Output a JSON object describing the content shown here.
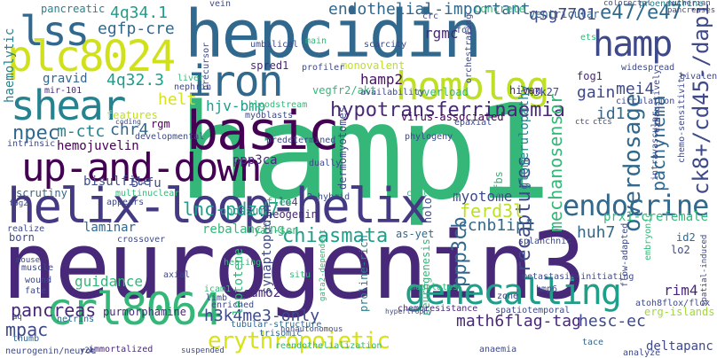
{
  "words": [
    {
      "text": "neurogenin3",
      "color": "#482878"
    },
    {
      "text": "hamp1",
      "color": "#35b779"
    },
    {
      "text": "hepcidin",
      "color": "#31688e"
    },
    {
      "text": "helix-loop-helix",
      "color": "#443983"
    },
    {
      "text": "basic",
      "color": "#440154"
    },
    {
      "text": "up-and-down",
      "color": "#440154"
    },
    {
      "text": "crl8064",
      "color": "#35b779"
    },
    {
      "text": "plc8024",
      "color": "#d0e11c"
    },
    {
      "text": "lss",
      "color": "#31688e"
    },
    {
      "text": "iron",
      "color": "#31688e"
    },
    {
      "text": "shear",
      "color": "#26828e"
    },
    {
      "text": "homolog",
      "color": "#bddf26"
    },
    {
      "text": "hamp",
      "color": "#3e4989"
    },
    {
      "text": "genecalling",
      "color": "#1f9e89"
    },
    {
      "text": "endocrine",
      "color": "#31688e"
    },
    {
      "text": "erythropoietic",
      "color": "#d8e219"
    },
    {
      "text": "hypotransferrinaemia",
      "color": "#482878"
    },
    {
      "text": "e47/e47",
      "color": "#31688e"
    },
    {
      "text": "ck8+/cd45-/dapi",
      "color": "#3e4989"
    },
    {
      "text": "overdosage",
      "color": "#31688e"
    },
    {
      "text": "mechanosensor",
      "color": "#35b779"
    },
    {
      "text": "pachynema",
      "color": "#31688e"
    },
    {
      "text": "hamp2",
      "color": "#471365"
    },
    {
      "text": "lnc-pdzd7",
      "color": "#1f9e89"
    },
    {
      "text": "chiasmata",
      "color": "#1f9e89"
    },
    {
      "text": "ppp3cb",
      "color": "#31688e"
    },
    {
      "text": "recaptures",
      "color": "#3e4989"
    },
    {
      "text": "pancreas",
      "color": "#482878"
    },
    {
      "text": "qsg7701",
      "color": "#3e4989"
    },
    {
      "text": "mpac",
      "color": "#3e4989"
    },
    {
      "text": "4q34.1",
      "color": "#1f9e89"
    },
    {
      "text": "4q32.3",
      "color": "#1f9e89"
    },
    {
      "text": "egfp-cre",
      "color": "#31688e"
    },
    {
      "text": "endothelial-important",
      "color": "#31688e"
    },
    {
      "text": "rgmc",
      "color": "#482878"
    },
    {
      "text": "npec",
      "color": "#31688e"
    },
    {
      "text": "m-ctc",
      "color": "#26828e"
    },
    {
      "text": "chr4",
      "color": "#31688e"
    },
    {
      "text": "hemojuvelin",
      "color": "#440154"
    },
    {
      "text": "hjv-bmp",
      "color": "#1f9e89"
    },
    {
      "text": "helt",
      "color": "#d8e219"
    },
    {
      "text": "mei4",
      "color": "#3e4989"
    },
    {
      "text": "gain",
      "color": "#3e4989"
    },
    {
      "text": "id1",
      "color": "#31688e"
    },
    {
      "text": "ccnb1ip1",
      "color": "#31688e"
    },
    {
      "text": "ferd3l",
      "color": "#bddf26"
    },
    {
      "text": "myotome",
      "color": "#3e4989"
    },
    {
      "text": "huh7",
      "color": "#31688e"
    },
    {
      "text": "prx1-crefemale",
      "color": "#35b779"
    },
    {
      "text": "h3k4me3-only",
      "color": "#3e4989"
    },
    {
      "text": "math6flag-tag",
      "color": "#482878"
    },
    {
      "text": "hesc-ec",
      "color": "#3e4989"
    },
    {
      "text": "rim4",
      "color": "#482878"
    },
    {
      "text": "deltapanc",
      "color": "#3e4989"
    },
    {
      "text": "rebalancing",
      "color": "#35b779"
    },
    {
      "text": "laminar",
      "color": "#31688e"
    },
    {
      "text": "bisulfite",
      "color": "#3e4989"
    },
    {
      "text": "5-fu",
      "color": "#3e4989"
    },
    {
      "text": "ppp3ca",
      "color": "#482878"
    },
    {
      "text": "glomerulopathy",
      "color": "#26828e"
    },
    {
      "text": "tfbs",
      "color": "#35b779"
    },
    {
      "text": "guidance",
      "color": "#35b779"
    },
    {
      "text": "purmorphamine",
      "color": "#482878"
    },
    {
      "text": "sumo2",
      "color": "#482878"
    },
    {
      "text": "leptotene",
      "color": "#35b779"
    },
    {
      "text": "synaptopodin",
      "color": "#3e4989"
    },
    {
      "text": "proline-rich",
      "color": "#26828e"
    },
    {
      "text": "neurogenesis",
      "color": "#35b779"
    },
    {
      "text": "haemolytic",
      "color": "#26828e"
    },
    {
      "text": "gravid",
      "color": "#31688e"
    },
    {
      "text": "mir-101",
      "color": "#482878"
    },
    {
      "text": "pancreatic",
      "color": "#26828e"
    },
    {
      "text": "spred1",
      "color": "#482878"
    },
    {
      "text": "monovalent",
      "color": "#bddf26"
    },
    {
      "text": "vegfr2/akt",
      "color": "#35b779"
    },
    {
      "text": "features",
      "color": "#bddf26"
    },
    {
      "text": "rgm",
      "color": "#440154"
    },
    {
      "text": "scrutiny",
      "color": "#31688e"
    },
    {
      "text": "born",
      "color": "#3e4989"
    },
    {
      "text": "opossum",
      "color": "#1f9e89"
    },
    {
      "text": "neogenin",
      "color": "#482878"
    },
    {
      "text": "le4",
      "color": "#3e4989"
    },
    {
      "text": "fle4",
      "color": "#35b779"
    },
    {
      "text": "yat-sen",
      "color": "#35b779"
    },
    {
      "text": "as-yet",
      "color": "#31688e"
    },
    {
      "text": "holo",
      "color": "#3e4989"
    },
    {
      "text": "dermomyotomes",
      "color": "#3e4989"
    },
    {
      "text": "overload",
      "color": "#35b779"
    },
    {
      "text": "hivan",
      "color": "#482878"
    },
    {
      "text": "h3k27",
      "color": "#3e4989"
    },
    {
      "text": "fog1",
      "color": "#482878"
    },
    {
      "text": "virus-associated",
      "color": "#440154"
    },
    {
      "text": "concrete",
      "color": "#35b779"
    },
    {
      "text": "ventricular",
      "color": "#31688e"
    },
    {
      "text": "proendocrine",
      "color": "#26828e"
    },
    {
      "text": "embryonic",
      "color": "#35b779"
    },
    {
      "text": "flow-adapted",
      "color": "#3e4989"
    },
    {
      "text": "id2",
      "color": "#31688e"
    },
    {
      "text": "lo2",
      "color": "#3e4989"
    },
    {
      "text": "erg-islands",
      "color": "#a0da39"
    },
    {
      "text": "reendothelialization",
      "color": "#35b779"
    },
    {
      "text": "trisomic",
      "color": "#31688e"
    },
    {
      "text": "thumb",
      "color": "#31688e"
    },
    {
      "text": "netrins",
      "color": "#31688e"
    },
    {
      "text": "immortalized",
      "color": "#482878"
    },
    {
      "text": "tubular-structure",
      "color": "#31688e"
    },
    {
      "text": "chemoresistance",
      "color": "#482878"
    },
    {
      "text": "spatiotemporal",
      "color": "#3e4989"
    },
    {
      "text": "anaemia",
      "color": "#3e4989"
    },
    {
      "text": "tace",
      "color": "#31688e"
    },
    {
      "text": "analyze",
      "color": "#3e4989"
    },
    {
      "text": "atoh8flox/flox",
      "color": "#3e4989"
    },
    {
      "text": "zone",
      "color": "#3e4989"
    },
    {
      "text": "vein",
      "color": "#3e4989"
    },
    {
      "text": "crc",
      "color": "#3e4989"
    },
    {
      "text": "fog",
      "color": "#3e4989"
    },
    {
      "text": "ets",
      "color": "#35b779"
    },
    {
      "text": "main",
      "color": "#35b779"
    },
    {
      "text": "scarcity",
      "color": "#3e4989"
    },
    {
      "text": "umbilical",
      "color": "#3e4989"
    },
    {
      "text": "liver",
      "color": "#35b779"
    },
    {
      "text": "nephrin",
      "color": "#3e4989"
    },
    {
      "text": "precursor",
      "color": "#3e4989"
    },
    {
      "text": "profiler",
      "color": "#3e4989"
    },
    {
      "text": "orchestrating",
      "color": "#3e4989"
    },
    {
      "text": "availability",
      "color": "#3e4989"
    },
    {
      "text": "myoblasts",
      "color": "#3e4989"
    },
    {
      "text": "bloodstream",
      "color": "#35b779"
    },
    {
      "text": "epaxial",
      "color": "#3e4989"
    },
    {
      "text": "phylogeny",
      "color": "#3e4989"
    },
    {
      "text": "predetermined",
      "color": "#3e4989"
    },
    {
      "text": "dually",
      "color": "#3e4989"
    },
    {
      "text": "developmental",
      "color": "#3e4989"
    },
    {
      "text": "intrinsic",
      "color": "#3e4989"
    },
    {
      "text": "multinuclear",
      "color": "#35b779"
    },
    {
      "text": "2-hybrid",
      "color": "#3e4989"
    },
    {
      "text": "collapsing",
      "color": "#35b779"
    },
    {
      "text": "appears",
      "color": "#3e4989"
    },
    {
      "text": "crossover",
      "color": "#3e4989"
    },
    {
      "text": "realize",
      "color": "#3e4989"
    },
    {
      "text": "muscle",
      "color": "#3e4989"
    },
    {
      "text": "wound",
      "color": "#3e4989"
    },
    {
      "text": "fate",
      "color": "#3e4989"
    },
    {
      "text": "axial",
      "color": "#3e4989"
    },
    {
      "text": "icam1",
      "color": "#35b779"
    },
    {
      "text": "limb",
      "color": "#3e4989"
    },
    {
      "text": "enriched",
      "color": "#3e4989"
    },
    {
      "text": "healing",
      "color": "#35b779"
    },
    {
      "text": "situ",
      "color": "#35b779"
    },
    {
      "text": "modulates",
      "color": "#35b779"
    },
    {
      "text": "splanchnic",
      "color": "#3e4989"
    },
    {
      "text": "metastasis-initiating",
      "color": "#3e4989"
    },
    {
      "text": "bmp6",
      "color": "#3e4989"
    },
    {
      "text": "circulation",
      "color": "#3e4989"
    },
    {
      "text": "widespread",
      "color": "#3e4989"
    },
    {
      "text": "bivalent",
      "color": "#3e4989"
    },
    {
      "text": "pancreases",
      "color": "#3e4989"
    },
    {
      "text": "colorectal",
      "color": "#3e4989"
    },
    {
      "text": "eutherian",
      "color": "#3e4989"
    },
    {
      "text": "exhaustively",
      "color": "#3e4989"
    },
    {
      "text": "intravascular",
      "color": "#3e4989"
    },
    {
      "text": "chemo-sensitivity",
      "color": "#3e4989"
    },
    {
      "text": "spatial-induced",
      "color": "#3e4989"
    },
    {
      "text": "neurogenin/neurod",
      "color": "#3e4989"
    },
    {
      "text": "y2h",
      "color": "#3e4989"
    },
    {
      "text": "suspended",
      "color": "#3e4989"
    },
    {
      "text": "nonautonomous",
      "color": "#3e4989"
    },
    {
      "text": "gata2-dependent",
      "color": "#35b779"
    },
    {
      "text": "ctcs",
      "color": "#3e4989"
    },
    {
      "text": "ctc",
      "color": "#3e4989"
    },
    {
      "text": "coding",
      "color": "#3e4989"
    },
    {
      "text": "fog2",
      "color": "#3e4989"
    },
    {
      "text": "hypertrophy",
      "color": "#3e4989"
    },
    {
      "text": "mouse",
      "color": "#3e4989"
    },
    {
      "text": "aq",
      "color": "#3e4989"
    }
  ]
}
